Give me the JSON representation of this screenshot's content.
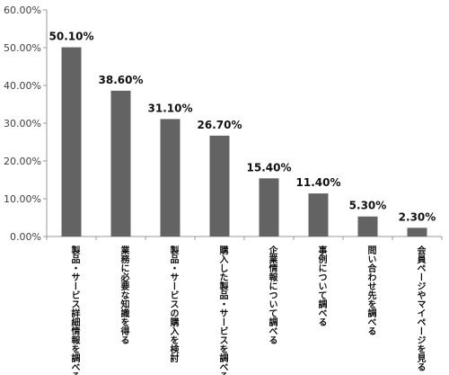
{
  "chart_data": {
    "type": "bar",
    "categories": [
      "製品・サービス詳細情報を調べる",
      "業務に必要な知識を得る",
      "製品・サービスの購入を検討",
      "購入した製品・サービスを調べる",
      "企業情報について調べる",
      "事例について調べる",
      "問い合わせ先を調べる",
      "会員ページやマイページを見る"
    ],
    "values": [
      50.1,
      38.6,
      31.1,
      26.7,
      15.4,
      11.4,
      5.3,
      2.3
    ],
    "value_labels": [
      "50.10%",
      "38.60%",
      "31.10%",
      "26.70%",
      "15.40%",
      "11.40%",
      "5.30%",
      "2.30%"
    ],
    "y_ticks": [
      "0.00%",
      "10.00%",
      "20.00%",
      "30.00%",
      "40.00%",
      "50.00%",
      "60.00%"
    ],
    "ylim": [
      0,
      60
    ],
    "grid": false,
    "legend": "none",
    "bar_color": "#636363",
    "axis_color": "#999999"
  }
}
